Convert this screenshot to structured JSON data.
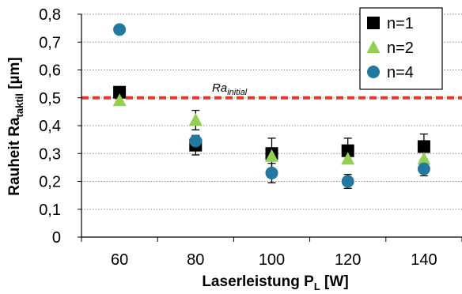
{
  "chart_data": {
    "type": "scatter",
    "x": [
      60,
      80,
      100,
      120,
      140
    ],
    "xlim": [
      50,
      150
    ],
    "ylim": [
      0,
      0.8
    ],
    "y_ticks": [
      0,
      0.1,
      0.2,
      0.3,
      0.4,
      0.5,
      0.6,
      0.7,
      0.8
    ],
    "x_ticks": [
      60,
      80,
      100,
      120,
      140
    ],
    "tick_decimal_separator": ",",
    "xlabel": {
      "main": "Laserleistung P",
      "sub": "L",
      "unit": " [W]"
    },
    "ylabel": {
      "main": "Rauheit Ra",
      "sub": "taktil",
      "unit": " [µm]"
    },
    "grid": "horizontal-dotted",
    "legend_position": "top-right",
    "reference_line": {
      "y": 0.5,
      "label_main": "Ra",
      "label_sub": "initial",
      "color": "#e8372a",
      "style": "dashed"
    },
    "series": [
      {
        "name": "n=1",
        "marker": "square",
        "color": "#000000",
        "values": [
          0.52,
          0.33,
          0.3,
          0.31,
          0.325
        ],
        "error": [
          0,
          0.035,
          0.055,
          0.045,
          0.045
        ]
      },
      {
        "name": "n=2",
        "marker": "triangle",
        "color": "#92d050",
        "values": [
          0.49,
          0.42,
          0.29,
          0.28,
          0.28
        ],
        "error": [
          0,
          0.035,
          0,
          0,
          0
        ]
      },
      {
        "name": "n=4",
        "marker": "circle",
        "color": "#2179a0",
        "values": [
          0.745,
          0.345,
          0.23,
          0.2,
          0.245
        ],
        "error": [
          0,
          0,
          0.035,
          0.025,
          0.025
        ]
      }
    ]
  }
}
